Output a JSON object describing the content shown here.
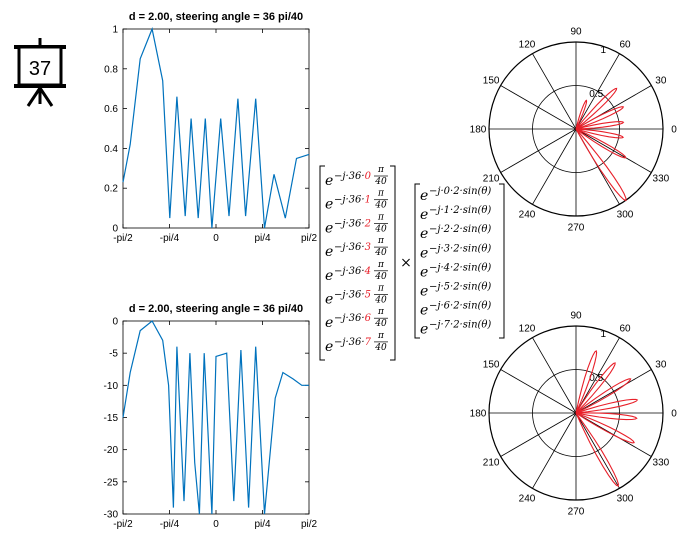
{
  "badge": {
    "number": "37"
  },
  "colors": {
    "line": "#0072bd",
    "polar_line": "#e8202a",
    "index_red": "#e8202a",
    "index_blue": "#1f77b4"
  },
  "chart_data": [
    {
      "type": "line",
      "title": "d = 2.00, steering angle  = 36 pi/40",
      "xlabel": "",
      "ylabel": "",
      "xlim": [
        -1.5708,
        1.5708
      ],
      "ylim": [
        0,
        1
      ],
      "xtick_labels": [
        "-pi/2",
        "-pi/4",
        "0",
        "pi/4",
        "pi/2"
      ],
      "ytick_labels": [
        "0",
        "0.2",
        "0.4",
        "0.6",
        "0.8",
        "1"
      ],
      "series": [
        {
          "x": [
            -1.571,
            -1.45,
            -1.28,
            -1.08,
            -0.9,
            -0.78,
            -0.66,
            -0.52,
            -0.42,
            -0.3,
            -0.18,
            -0.07,
            0.08,
            0.22,
            0.37,
            0.5,
            0.67,
            0.82,
            0.98,
            1.17,
            1.36,
            1.571
          ],
          "y": [
            0.23,
            0.42,
            0.85,
            1.0,
            0.74,
            0.05,
            0.66,
            0.06,
            0.55,
            0.05,
            0.55,
            0.0,
            0.55,
            0.06,
            0.65,
            0.06,
            0.65,
            0.0,
            0.27,
            0.05,
            0.35,
            0.37
          ]
        }
      ]
    },
    {
      "type": "line",
      "title": "d = 2.00, steering angle  = 36 pi/40",
      "xlabel": "",
      "ylabel": "",
      "xlim": [
        -1.5708,
        1.5708
      ],
      "ylim": [
        -30,
        0
      ],
      "xtick_labels": [
        "-pi/2",
        "-pi/4",
        "0",
        "pi/4",
        "pi/2"
      ],
      "ytick_labels": [
        "0",
        "-5",
        "-10",
        "-15",
        "-20",
        "-25",
        "-30"
      ],
      "series": [
        {
          "x": [
            -1.571,
            -1.45,
            -1.28,
            -1.08,
            -0.9,
            -0.8,
            -0.72,
            -0.66,
            -0.54,
            -0.44,
            -0.36,
            -0.28,
            -0.2,
            -0.07,
            0.0,
            0.18,
            0.3,
            0.42,
            0.55,
            0.67,
            0.82,
            1.0,
            1.13,
            1.3,
            1.45,
            1.571
          ],
          "y": [
            -15,
            -8,
            -1.5,
            0,
            -3,
            -10,
            -29,
            -4,
            -28,
            -5,
            -22,
            -30,
            -5,
            -30,
            -5.5,
            -5,
            -28,
            -4.5,
            -29,
            -4,
            -30,
            -12,
            -8,
            -9,
            -10,
            -10
          ]
        }
      ]
    },
    {
      "type": "polar",
      "angle_labels": [
        "90",
        "60",
        "30",
        "0",
        "330",
        "300",
        "270",
        "240",
        "210",
        "180",
        "150",
        "120"
      ],
      "radius_labels": [
        "0.5",
        "1"
      ],
      "rlim": [
        0,
        1
      ],
      "lobes_deg": [
        {
          "angle": 305,
          "r": 1.0
        },
        {
          "angle": 330,
          "r": 0.66
        },
        {
          "angle": 350,
          "r": 0.55
        },
        {
          "angle": 8,
          "r": 0.55
        },
        {
          "angle": 25,
          "r": 0.6
        },
        {
          "angle": 45,
          "r": 0.66
        },
        {
          "angle": 70,
          "r": 0.35
        }
      ]
    },
    {
      "type": "polar",
      "angle_labels": [
        "90",
        "60",
        "30",
        "0",
        "330",
        "300",
        "270",
        "240",
        "210",
        "180",
        "150",
        "120"
      ],
      "radius_labels": [
        "0.5",
        "1"
      ],
      "rlim": [
        0,
        1
      ],
      "lobes_deg": [
        {
          "angle": 300,
          "r": 0.97
        },
        {
          "angle": 333,
          "r": 0.75
        },
        {
          "angle": 355,
          "r": 0.7
        },
        {
          "angle": 12,
          "r": 0.72
        },
        {
          "angle": 32,
          "r": 0.74
        },
        {
          "angle": 52,
          "r": 0.73
        },
        {
          "angle": 72,
          "r": 0.75
        }
      ]
    }
  ],
  "matrix": {
    "steer_prefix": "e",
    "steer_exp": "−j·36·",
    "steer_indices": [
      "0",
      "1",
      "2",
      "3",
      "4",
      "5",
      "6",
      "7"
    ],
    "frac_num": "π",
    "frac_den": "40",
    "times": "×",
    "elem_prefix": "e",
    "elem_exps": [
      "−j·0·2·sin(θ)",
      "−j·1·2·sin(θ)",
      "−j·2·2·sin(θ)",
      "−j·3·2·sin(θ)",
      "−j·4·2·sin(θ)",
      "−j·5·2·sin(θ)",
      "−j·6·2·sin(θ)",
      "−j·7·2·sin(θ)"
    ]
  }
}
